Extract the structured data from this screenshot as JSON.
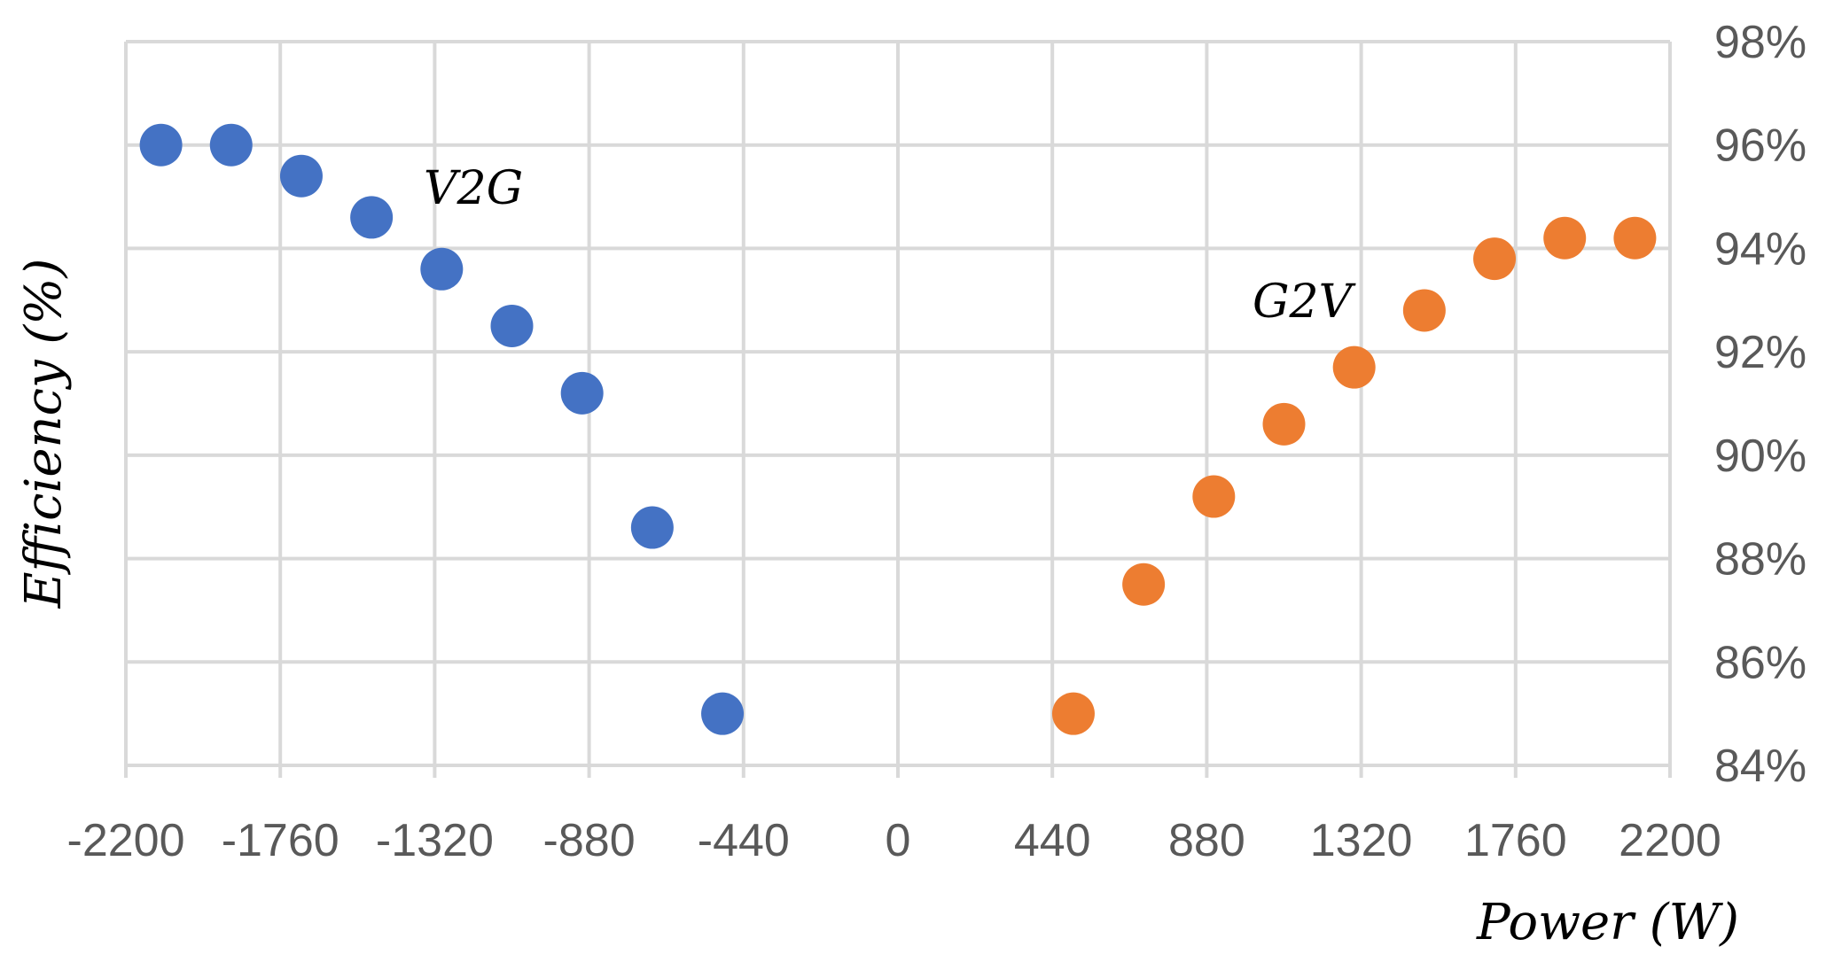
{
  "chart_data": {
    "type": "scatter",
    "xlabel": "Power (W)",
    "ylabel": "Efficiency (%)",
    "xlim": [
      -2200,
      2200
    ],
    "ylim": [
      84,
      98
    ],
    "x_ticks": [
      -2200,
      -1760,
      -1320,
      -880,
      -440,
      0,
      440,
      880,
      1320,
      1760,
      2200
    ],
    "x_tick_labels": [
      "-2200",
      "-1760",
      "-1320",
      "-880",
      "-440",
      "0",
      "440",
      "880",
      "1320",
      "1760",
      "2200"
    ],
    "y_ticks": [
      84,
      86,
      88,
      90,
      92,
      94,
      96,
      98
    ],
    "y_tick_labels": [
      "84%",
      "86%",
      "88%",
      "90%",
      "92%",
      "94%",
      "96%",
      "98%"
    ],
    "y_axis_side": "right",
    "grid": true,
    "series": [
      {
        "name": "V2G",
        "color": "#4472c4",
        "x": [
          -2100,
          -1900,
          -1700,
          -1500,
          -1300,
          -1100,
          -900,
          -700,
          -500
        ],
        "y": [
          96.0,
          96.0,
          95.4,
          94.6,
          93.6,
          92.5,
          91.2,
          88.6,
          85.0
        ]
      },
      {
        "name": "G2V",
        "color": "#ed7d31",
        "x": [
          500,
          700,
          900,
          1100,
          1300,
          1500,
          1700,
          1900,
          2100
        ],
        "y": [
          85.0,
          87.5,
          89.2,
          90.6,
          91.7,
          92.8,
          93.8,
          94.2,
          94.2
        ]
      }
    ]
  }
}
